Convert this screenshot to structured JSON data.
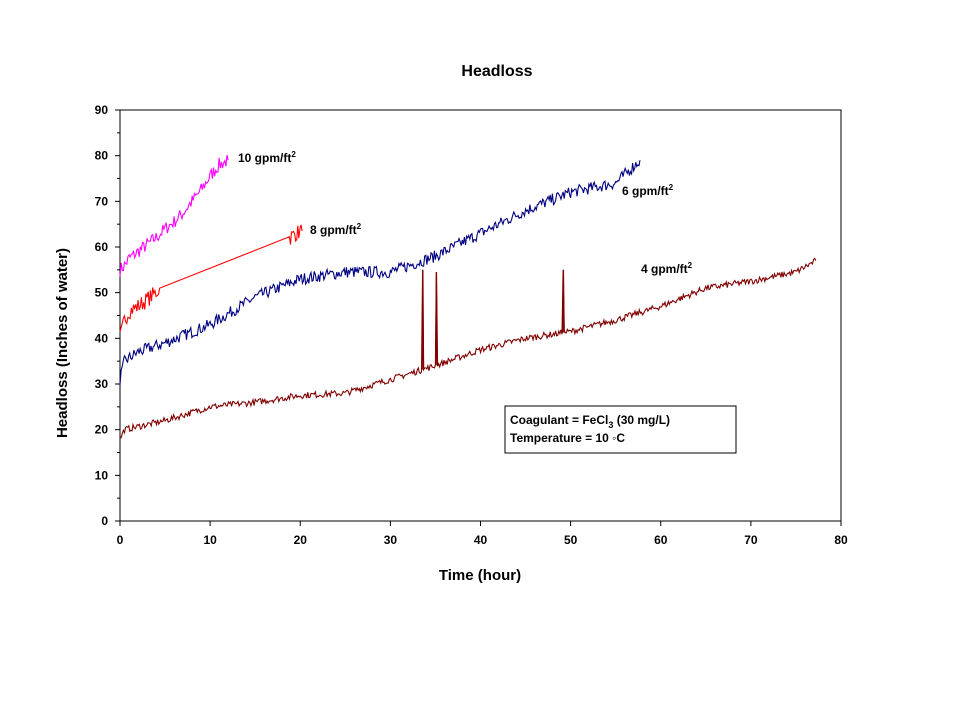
{
  "chart_data": {
    "type": "line",
    "title": "Headloss",
    "xlabel": "Time (hour)",
    "ylabel": "Headloss (Inches of water)",
    "xlim": [
      0,
      80
    ],
    "ylim": [
      0,
      90
    ],
    "x_ticks": [
      "0",
      "10",
      "20",
      "30",
      "40",
      "50",
      "60",
      "70",
      "80"
    ],
    "y_ticks": [
      "0",
      "10",
      "20",
      "30",
      "40",
      "50",
      "60",
      "70",
      "80",
      "90"
    ],
    "grid": false,
    "legend": "none",
    "series": [
      {
        "name": "10 gpm/ft",
        "superscript": "2",
        "color": "#ff00ff",
        "points": [
          [
            0,
            55
          ],
          [
            0.5,
            56
          ],
          [
            1,
            57.5
          ],
          [
            2,
            59
          ],
          [
            3,
            60.5
          ],
          [
            4,
            62
          ],
          [
            5,
            64
          ],
          [
            6,
            65.5
          ],
          [
            7,
            67.5
          ],
          [
            8,
            70
          ],
          [
            9,
            72.5
          ],
          [
            10,
            75.5
          ],
          [
            11,
            78
          ],
          [
            12,
            79
          ]
        ],
        "noise": 1.5
      },
      {
        "name": "8 gpm/ft",
        "superscript": "2",
        "color": "#ff0000",
        "points": [
          [
            0,
            40
          ],
          [
            0.5,
            44
          ],
          [
            1,
            46
          ],
          [
            2,
            47
          ],
          [
            3,
            48.5
          ],
          [
            4,
            50
          ],
          [
            4.4,
            51
          ],
          [
            18.8,
            62
          ],
          [
            19.5,
            63
          ],
          [
            20.2,
            63.5
          ]
        ],
        "noise": 1.8
      },
      {
        "name": "6 gpm/ft",
        "superscript": "2",
        "color": "#000080",
        "points": [
          [
            0,
            31
          ],
          [
            0.5,
            35
          ],
          [
            2,
            37
          ],
          [
            5,
            39
          ],
          [
            10,
            43
          ],
          [
            15,
            49
          ],
          [
            20,
            53
          ],
          [
            25,
            54.5
          ],
          [
            30,
            54.5
          ],
          [
            35,
            58
          ],
          [
            40,
            63
          ],
          [
            45,
            68
          ],
          [
            50,
            72
          ],
          [
            55,
            74
          ],
          [
            57.7,
            79
          ]
        ],
        "noise": 1.3
      },
      {
        "name": "4 gpm/ft",
        "superscript": "2",
        "color": "#800000",
        "points": [
          [
            0,
            18
          ],
          [
            0.5,
            20
          ],
          [
            5,
            22
          ],
          [
            10,
            25
          ],
          [
            15,
            26
          ],
          [
            20,
            27.5
          ],
          [
            25,
            28
          ],
          [
            30,
            31
          ],
          [
            35,
            34
          ],
          [
            40,
            37.5
          ],
          [
            45,
            40
          ],
          [
            50,
            41.5
          ],
          [
            55,
            44
          ],
          [
            60,
            47
          ],
          [
            65,
            51
          ],
          [
            70,
            52.5
          ],
          [
            75,
            54.5
          ],
          [
            77.2,
            57
          ]
        ],
        "noise": 0.7,
        "spikes": [
          [
            33.6,
            55
          ],
          [
            35.1,
            54.5
          ],
          [
            49.2,
            55
          ]
        ]
      }
    ],
    "annotation": {
      "line1_prefix": "Coagulant = FeCl",
      "line1_sub": "3",
      "line1_suffix": " (30 mg/L)",
      "line2": "Temperature = 10 ◦C"
    }
  }
}
